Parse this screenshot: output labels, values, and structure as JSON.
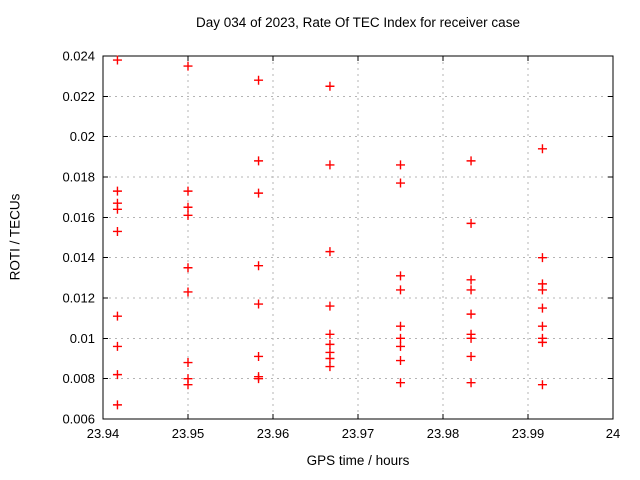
{
  "chart_data": {
    "type": "scatter",
    "title": "Day 034 of 2023, Rate Of TEC Index for receiver case",
    "xlabel": "GPS time / hours",
    "ylabel": "ROTI / TECUs",
    "xlim": [
      23.94,
      24
    ],
    "ylim": [
      0.006,
      0.024
    ],
    "x_ticks": [
      23.94,
      23.95,
      23.96,
      23.97,
      23.98,
      23.99,
      24
    ],
    "x_tick_labels": [
      "23.94",
      "23.95",
      "23.96",
      "23.97",
      "23.98",
      "23.99",
      "24"
    ],
    "y_ticks": [
      0.006,
      0.008,
      0.01,
      0.012,
      0.014,
      0.016,
      0.018,
      0.02,
      0.022,
      0.024
    ],
    "y_tick_labels": [
      "0.006",
      "0.008",
      "0.01",
      "0.012",
      "0.014",
      "0.016",
      "0.018",
      "0.02",
      "0.022",
      "0.024"
    ],
    "grid": true,
    "legend": "none",
    "marker": "plus",
    "marker_color": "#ff0000",
    "grid_color": "#b4b4b4",
    "axis_color": "#000000",
    "series": [
      {
        "name": "ROTI",
        "clusters": [
          {
            "t": 23.9417,
            "values": [
              0.0238,
              0.0173,
              0.0167,
              0.0164,
              0.0153,
              0.0111,
              0.0096,
              0.0082,
              0.0067
            ]
          },
          {
            "t": 23.95,
            "values": [
              0.0235,
              0.0173,
              0.0165,
              0.0161,
              0.0135,
              0.0123,
              0.0088,
              0.008,
              0.0077
            ]
          },
          {
            "t": 23.9583,
            "values": [
              0.0228,
              0.0188,
              0.0172,
              0.0136,
              0.0117,
              0.0091,
              0.0081,
              0.008
            ]
          },
          {
            "t": 23.9667,
            "values": [
              0.0225,
              0.0186,
              0.0143,
              0.0116,
              0.0102,
              0.0097,
              0.0093,
              0.009,
              0.0086
            ]
          },
          {
            "t": 23.975,
            "values": [
              0.0186,
              0.0177,
              0.0131,
              0.0124,
              0.0106,
              0.01,
              0.0096,
              0.0089,
              0.0078
            ]
          },
          {
            "t": 23.9833,
            "values": [
              0.0188,
              0.0157,
              0.0129,
              0.0124,
              0.0112,
              0.0102,
              0.01,
              0.0091,
              0.0078
            ]
          },
          {
            "t": 23.9917,
            "values": [
              0.0194,
              0.014,
              0.0127,
              0.0124,
              0.0115,
              0.0106,
              0.01,
              0.0098,
              0.0077
            ]
          }
        ]
      }
    ]
  }
}
